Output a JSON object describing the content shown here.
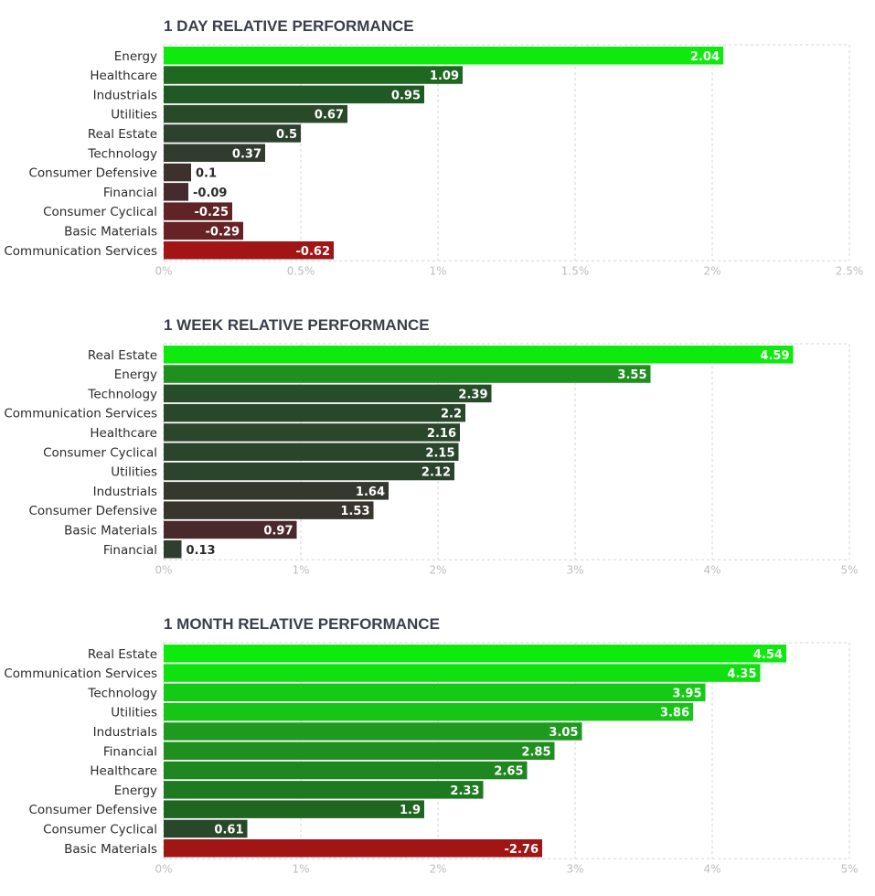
{
  "colors": {
    "bar_gradient": [
      "#0eea0e",
      "#1f9a1f",
      "#1f5a22",
      "#2e3e2f",
      "#452a2e",
      "#a11515"
    ],
    "positive_label": "#ffffff",
    "small_label": "#2b2b2b",
    "grid": "#d6d6d6",
    "title": "#3a3f4a"
  },
  "chart_data": [
    {
      "type": "bar",
      "orientation": "horizontal",
      "title": "1 DAY RELATIVE PERFORMANCE",
      "categories": [
        "Energy",
        "Healthcare",
        "Industrials",
        "Utilities",
        "Real Estate",
        "Technology",
        "Consumer Defensive",
        "Financial",
        "Consumer Cyclical",
        "Basic Materials",
        "Communication Services"
      ],
      "values": [
        2.04,
        1.09,
        0.95,
        0.67,
        0.5,
        0.37,
        0.1,
        -0.09,
        -0.25,
        -0.29,
        -0.62
      ],
      "value_labels": [
        "2.04",
        "1.09",
        "0.95",
        "0.67",
        "0.5",
        "0.37",
        "0.1",
        "-0.09",
        "-0.25",
        "-0.29",
        "-0.62"
      ],
      "xlim": [
        0,
        2.5
      ],
      "xticks": [
        "0%",
        "0.5%",
        "1%",
        "1.5%",
        "2%",
        "2.5%"
      ],
      "grid": true
    },
    {
      "type": "bar",
      "orientation": "horizontal",
      "title": "1 WEEK RELATIVE PERFORMANCE",
      "categories": [
        "Real Estate",
        "Energy",
        "Technology",
        "Communication Services",
        "Healthcare",
        "Consumer Cyclical",
        "Utilities",
        "Industrials",
        "Consumer Defensive",
        "Basic Materials",
        "Financial"
      ],
      "values": [
        4.59,
        3.55,
        2.39,
        2.2,
        2.16,
        2.15,
        2.12,
        1.64,
        1.53,
        0.97,
        0.13
      ],
      "value_labels": [
        "4.59",
        "3.55",
        "2.39",
        "2.2",
        "2.16",
        "2.15",
        "2.12",
        "1.64",
        "1.53",
        "0.97",
        "0.13"
      ],
      "xlim": [
        0,
        5
      ],
      "xticks": [
        "0%",
        "1%",
        "2%",
        "3%",
        "4%",
        "5%"
      ],
      "grid": true
    },
    {
      "type": "bar",
      "orientation": "horizontal",
      "title": "1 MONTH RELATIVE PERFORMANCE",
      "categories": [
        "Real Estate",
        "Communication Services",
        "Technology",
        "Utilities",
        "Industrials",
        "Financial",
        "Healthcare",
        "Energy",
        "Consumer Defensive",
        "Consumer Cyclical",
        "Basic Materials"
      ],
      "values": [
        4.54,
        4.35,
        3.95,
        3.86,
        3.05,
        2.85,
        2.65,
        2.33,
        1.9,
        0.61,
        -2.76
      ],
      "value_labels": [
        "4.54",
        "4.35",
        "3.95",
        "3.86",
        "3.05",
        "2.85",
        "2.65",
        "2.33",
        "1.9",
        "0.61",
        "-2.76"
      ],
      "xlim": [
        0,
        5
      ],
      "xticks": [
        "0%",
        "1%",
        "2%",
        "3%",
        "4%",
        "5%"
      ],
      "grid": true
    }
  ]
}
